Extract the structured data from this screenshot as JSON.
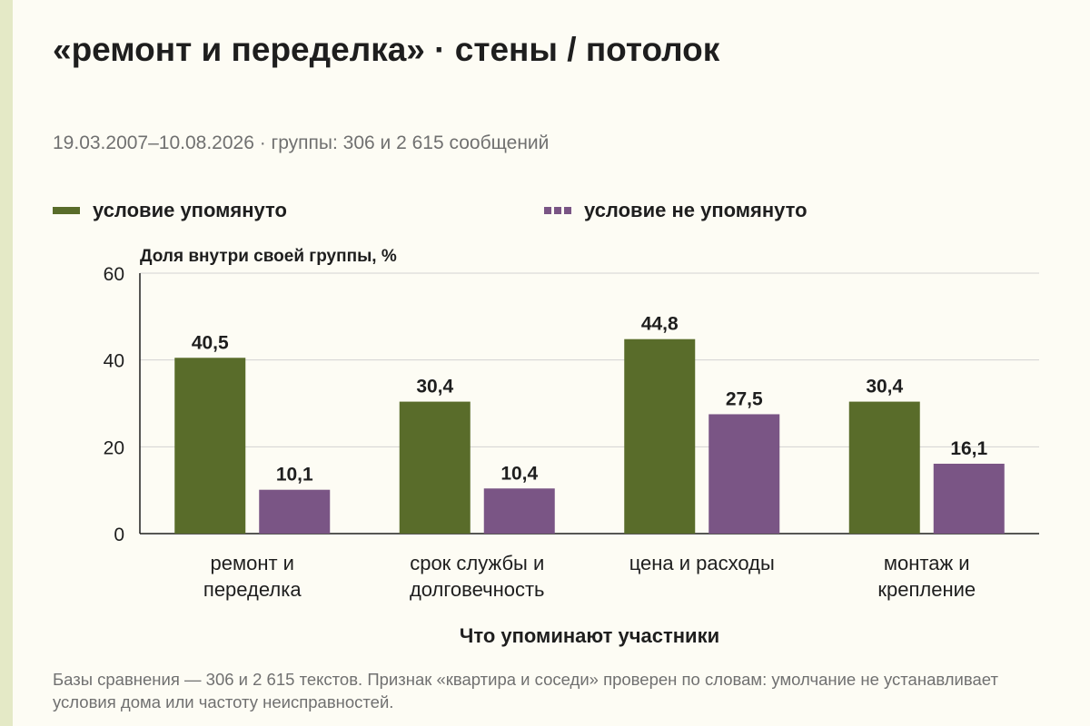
{
  "title": "«ремонт и переделка» · стены / потолок",
  "subtitle": "19.03.2007–10.08.2026 · группы: 306 и 2 615 сообщений",
  "legend": [
    {
      "label": "условие упомянуто",
      "color": "#596c2a",
      "style": "solid"
    },
    {
      "label": "условие не упомянуто",
      "color": "#7a5585",
      "style": "dashed"
    }
  ],
  "chart_data": {
    "type": "bar",
    "categories": [
      [
        "ремонт и",
        "переделка"
      ],
      [
        "срок службы и",
        "долговечность"
      ],
      [
        "цена и расходы"
      ],
      [
        "монтаж и",
        "крепление"
      ]
    ],
    "series": [
      {
        "name": "условие упомянуто",
        "values": [
          40.5,
          30.4,
          44.8,
          30.4
        ],
        "labels": [
          "40,5",
          "30,4",
          "44,8",
          "30,4"
        ],
        "color": "#596c2a"
      },
      {
        "name": "условие не упомянуто",
        "values": [
          10.1,
          10.4,
          27.5,
          16.1
        ],
        "labels": [
          "10,1",
          "10,4",
          "27,5",
          "16,1"
        ],
        "color": "#7a5585"
      }
    ],
    "ylabel": "Доля внутри своей группы, %",
    "xlabel": "Что упоминают участники",
    "ylim": [
      0,
      60
    ],
    "yticks": [
      0,
      20,
      40,
      60
    ],
    "grid": true
  },
  "footnote": "Базы сравнения — 306 и 2 615 текстов. Признак «квартира и соседи» проверен по словам: умолчание не устанавливает условия дома или частоту неисправностей."
}
